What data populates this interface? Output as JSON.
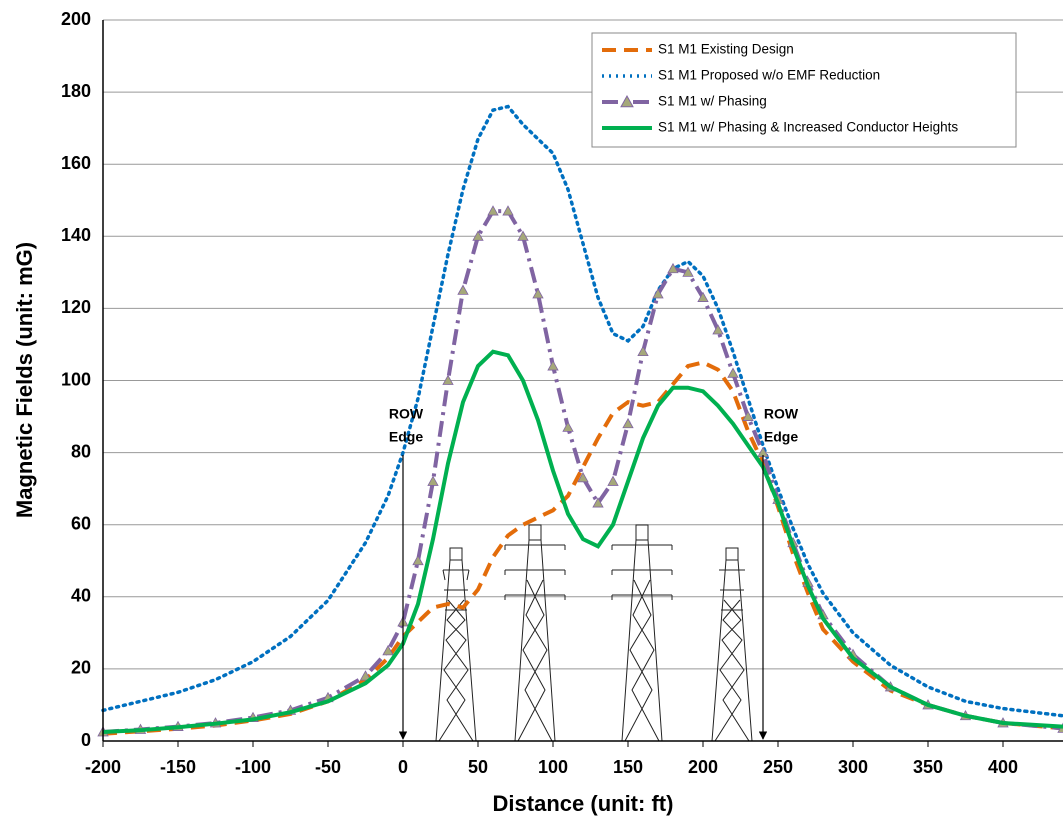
{
  "chart_data": {
    "type": "line",
    "xlabel": "Distance (unit: ft)",
    "ylabel": "Magnetic Fields (unit: mG)",
    "x": [
      -200,
      -175,
      -150,
      -125,
      -100,
      -75,
      -50,
      -25,
      -10,
      0,
      10,
      20,
      30,
      40,
      50,
      60,
      70,
      80,
      90,
      100,
      110,
      120,
      130,
      140,
      150,
      160,
      170,
      180,
      190,
      200,
      210,
      220,
      230,
      240,
      250,
      260,
      270,
      280,
      300,
      325,
      350,
      375,
      400,
      440
    ],
    "series": [
      {
        "name": "S1 M1 Existing Design",
        "color": "#e36c0a",
        "style": "dashed",
        "values": [
          2,
          2.7,
          3.4,
          4.3,
          5.7,
          7.5,
          11,
          17,
          23,
          29,
          33,
          37,
          38,
          37,
          42,
          51,
          57,
          60,
          62,
          64,
          68,
          76,
          84,
          91,
          94,
          93,
          94,
          99,
          104,
          105,
          103,
          97,
          86,
          77,
          65,
          52,
          41,
          31,
          22,
          14,
          10,
          7,
          5,
          3.5
        ]
      },
      {
        "name": "S1 M1 Proposed w/o EMF Reduction",
        "color": "#0070c0",
        "style": "dotted",
        "values": [
          8.5,
          11,
          13.5,
          17,
          22,
          29,
          39,
          55,
          68,
          80,
          95,
          115,
          135,
          153,
          167,
          175,
          176,
          171,
          167,
          163,
          153,
          138,
          123,
          113,
          111,
          115,
          125,
          131,
          133,
          129,
          120,
          108,
          95,
          82,
          70,
          59,
          49,
          41,
          30,
          21,
          15,
          11,
          9,
          7
        ]
      },
      {
        "name": "S1 M1 w/ Phasing",
        "color": "#8064a2",
        "style": "dashdot",
        "marker": "triangle",
        "marker_color": "#a5a87a",
        "values": [
          2.5,
          3.2,
          4,
          5,
          6.5,
          8.5,
          12,
          18,
          25,
          33,
          50,
          72,
          100,
          125,
          140,
          147,
          147,
          140,
          124,
          104,
          87,
          73,
          66,
          72,
          88,
          108,
          124,
          131,
          130,
          123,
          114,
          102,
          90,
          80,
          67,
          55,
          44,
          35,
          24,
          15,
          10,
          7,
          5,
          3.5
        ]
      },
      {
        "name": "S1 M1 w/ Phasing & Increased Conductor Heights",
        "color": "#00b050",
        "style": "solid",
        "values": [
          2.5,
          3,
          3.8,
          4.8,
          6,
          8,
          11,
          16,
          21,
          27,
          38,
          56,
          77,
          94,
          104,
          108,
          107,
          100,
          89,
          75,
          63,
          56,
          54,
          60,
          72,
          84,
          93,
          98,
          98,
          97,
          93,
          88,
          82,
          76,
          66,
          54,
          43,
          34,
          23,
          15,
          10,
          7,
          5,
          4
        ]
      }
    ],
    "xlim": [
      -200,
      440
    ],
    "ylim": [
      0,
      200
    ],
    "xticks": [
      -200,
      -150,
      -100,
      -50,
      0,
      50,
      100,
      150,
      200,
      250,
      300,
      350,
      400
    ],
    "yticks": [
      0,
      20,
      40,
      60,
      80,
      100,
      120,
      140,
      160,
      180,
      200
    ],
    "grid": true,
    "legend": "upper right",
    "annotations": [
      {
        "x": 0,
        "lines": [
          "ROW",
          "Edge"
        ]
      },
      {
        "x": 240,
        "lines": [
          "ROW",
          "Edge"
        ]
      }
    ]
  }
}
